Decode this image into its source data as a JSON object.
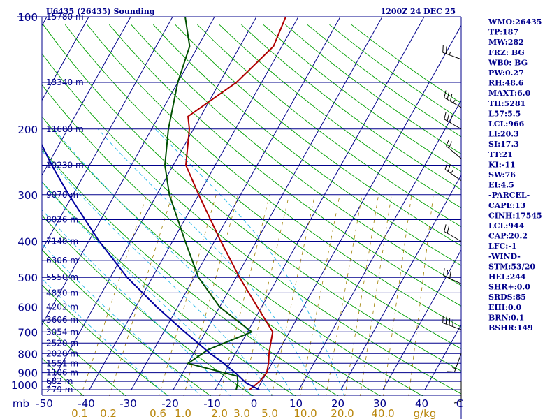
{
  "header": {
    "station": "U6435 (26435) Sounding",
    "valid_time": "1200Z 24 DEC 25"
  },
  "colors": {
    "frame": "#00008b",
    "isobar": "#00008b",
    "isotherm": "#00008b",
    "dry_adiabat": "#00a000",
    "moist_adiabat": "#22b8ea",
    "mixing_ratio": "#a08000",
    "temperature": "#b00000",
    "dewpoint": "#005000",
    "parcel": "#0000a0",
    "wind": "#000000"
  },
  "indices": [
    "WMO:26435",
    "TP:187",
    "MW:282",
    "FRZ: BG",
    "WB0: BG",
    "PW:0.27",
    "RH:48.6",
    "MAXT:6.0",
    "TH:5281",
    "L57:5.5",
    "LCL:966",
    "LI:20.3",
    "SI:17.3",
    "TT:21",
    "KI:-11",
    "SW:76",
    "EI:4.5",
    "-PARCEL-",
    "CAPE:13",
    "CINH:17545",
    "LCL:944",
    "CAP:20.2",
    "LFC:-1",
    "-WIND-",
    "STM:53/20",
    "HEL:244",
    "SHR+:0.0",
    "SRDS:85",
    "EHI:0.0",
    "BRN:0.1",
    "BSHR:149"
  ],
  "chart_data": {
    "type": "line",
    "subtype": "skew-T log-P sounding",
    "title": "U6435 (26435) Sounding 1200Z 24 DEC 25",
    "xlabel": "Temperature (°C)",
    "ylabel": "Pressure (mb)",
    "pressure_unit": "mb",
    "mixing_ratio_unit": "g/kg",
    "ylim": [
      1000,
      100
    ],
    "xlim": [
      -50,
      0
    ],
    "pressure_ticks": [
      {
        "label": "100",
        "p": 100
      },
      {
        "label": "200",
        "p": 200
      },
      {
        "label": "300",
        "p": 300
      },
      {
        "label": "400",
        "p": 400
      },
      {
        "label": "500",
        "p": 500
      },
      {
        "label": "600",
        "p": 600
      },
      {
        "label": "700",
        "p": 700
      },
      {
        "label": "800",
        "p": 800
      },
      {
        "label": "900",
        "p": 900
      },
      {
        "label": "1000",
        "p": 1000
      }
    ],
    "temperature_ticks": [
      {
        "label": "-50",
        "t": -50
      },
      {
        "label": "-40",
        "t": -40
      },
      {
        "label": "-30",
        "t": -30
      },
      {
        "label": "-20",
        "t": -20
      },
      {
        "label": "-10",
        "t": -10
      },
      {
        "label": "0",
        "t": 0
      },
      {
        "label": "10",
        "t": 10
      },
      {
        "label": "20",
        "t": 20
      },
      {
        "label": "30",
        "t": 30
      },
      {
        "label": "40",
        "t": 40
      },
      {
        "label": "C",
        "t": 50
      }
    ],
    "mixing_ratio_ticks": [
      {
        "label": "0.1",
        "w": 0.1
      },
      {
        "label": "0.2",
        "w": 0.2
      },
      {
        "label": "0.6",
        "w": 0.6
      },
      {
        "label": "1.0",
        "w": 1.0
      },
      {
        "label": "2.0",
        "w": 2.0
      },
      {
        "label": "3.0",
        "w": 3.0
      },
      {
        "label": "5.0",
        "w": 5.0
      },
      {
        "label": "10.0",
        "w": 10.0
      },
      {
        "label": "20.0",
        "w": 20.0
      },
      {
        "label": "40.0",
        "w": 40.0
      },
      {
        "label": "g/kg",
        "w": null
      }
    ],
    "isobars": [
      {
        "p": 100,
        "height": "15780 m"
      },
      {
        "p": 150,
        "height": "13340 m"
      },
      {
        "p": 200,
        "height": "11600 m"
      },
      {
        "p": 250,
        "height": "10230 m"
      },
      {
        "p": 300,
        "height": "9070 m"
      },
      {
        "p": 350,
        "height": "8036 m"
      },
      {
        "p": 400,
        "height": "7140 m"
      },
      {
        "p": 450,
        "height": "6306 m"
      },
      {
        "p": 500,
        "height": "5550 m"
      },
      {
        "p": 550,
        "height": "4850 m"
      },
      {
        "p": 600,
        "height": "4202 m"
      },
      {
        "p": 650,
        "height": "3606 m"
      },
      {
        "p": 700,
        "height": "3054 m"
      },
      {
        "p": 750,
        "height": "2520 m"
      },
      {
        "p": 800,
        "height": "2020 m"
      },
      {
        "p": 850,
        "height": "1551 m"
      },
      {
        "p": 900,
        "height": "1106 m"
      },
      {
        "p": 950,
        "height": "682 m"
      },
      {
        "p": 1000,
        "height": "279 m"
      }
    ],
    "series": [
      {
        "name": "Temperature",
        "points": [
          {
            "p": 1000,
            "t": -1.8
          },
          {
            "p": 950,
            "t": -0.5
          },
          {
            "p": 900,
            "t": 0.0
          },
          {
            "p": 850,
            "t": -0.8
          },
          {
            "p": 800,
            "t": -2.0
          },
          {
            "p": 750,
            "t": -3.0
          },
          {
            "p": 700,
            "t": -4.0
          },
          {
            "p": 600,
            "t": -11.0
          },
          {
            "p": 500,
            "t": -19.2
          },
          {
            "p": 400,
            "t": -28.5
          },
          {
            "p": 300,
            "t": -40.0
          },
          {
            "p": 250,
            "t": -47.0
          },
          {
            "p": 200,
            "t": -51.0
          },
          {
            "p": 185,
            "t": -53.0
          },
          {
            "p": 150,
            "t": -46.0
          },
          {
            "p": 120,
            "t": -42.0
          },
          {
            "p": 100,
            "t": -43.0
          }
        ]
      },
      {
        "name": "Dewpoint",
        "points": [
          {
            "p": 1000,
            "t": -5.0
          },
          {
            "p": 960,
            "t": -5.5
          },
          {
            "p": 920,
            "t": -6.5
          },
          {
            "p": 850,
            "t": -20.0
          },
          {
            "p": 780,
            "t": -17.0
          },
          {
            "p": 700,
            "t": -9.0
          },
          {
            "p": 600,
            "t": -20.0
          },
          {
            "p": 500,
            "t": -29.0
          },
          {
            "p": 400,
            "t": -37.0
          },
          {
            "p": 300,
            "t": -47.0
          },
          {
            "p": 250,
            "t": -52.0
          },
          {
            "p": 200,
            "t": -56.0
          },
          {
            "p": 150,
            "t": -60.0
          },
          {
            "p": 120,
            "t": -62.0
          },
          {
            "p": 100,
            "t": -67.0
          }
        ]
      },
      {
        "name": "Parcel",
        "points": [
          {
            "p": 1000,
            "t": 0.5
          },
          {
            "p": 960,
            "t": -3.5
          },
          {
            "p": 900,
            "t": -7.5
          },
          {
            "p": 850,
            "t": -11.5
          },
          {
            "p": 800,
            "t": -16.0
          },
          {
            "p": 700,
            "t": -25.0
          },
          {
            "p": 600,
            "t": -35.0
          },
          {
            "p": 500,
            "t": -46.0
          },
          {
            "p": 400,
            "t": -57.5
          },
          {
            "p": 300,
            "t": -71.0
          },
          {
            "p": 250,
            "t": -79.0
          },
          {
            "p": 200,
            "t": -88.0
          },
          {
            "p": 150,
            "t": -99.0
          },
          {
            "p": 120,
            "t": -107.0
          }
        ]
      }
    ],
    "wind_barbs": [
      {
        "p": 130,
        "dir": 290,
        "speed_kt": 25
      },
      {
        "p": 175,
        "dir": 300,
        "speed_kt": 35
      },
      {
        "p": 200,
        "dir": 300,
        "speed_kt": 30
      },
      {
        "p": 240,
        "dir": 310,
        "speed_kt": 20
      },
      {
        "p": 275,
        "dir": 305,
        "speed_kt": 25
      },
      {
        "p": 400,
        "dir": 300,
        "speed_kt": 20
      },
      {
        "p": 520,
        "dir": 295,
        "speed_kt": 30
      },
      {
        "p": 690,
        "dir": 290,
        "speed_kt": 40
      },
      {
        "p": 800,
        "dir": 200,
        "speed_kt": 15
      },
      {
        "p": 950,
        "dir": 180,
        "speed_kt": 10
      }
    ]
  }
}
